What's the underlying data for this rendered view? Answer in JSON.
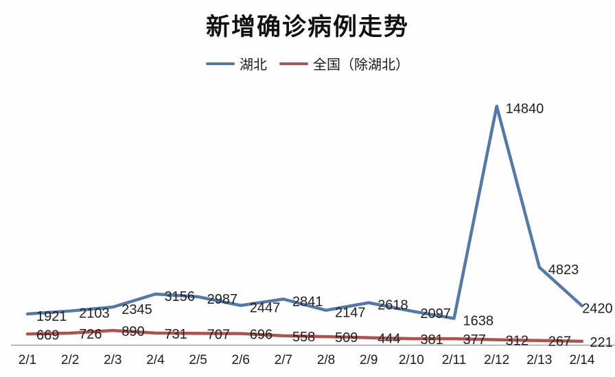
{
  "chart_data": {
    "type": "line",
    "title": "新增确诊病例走势",
    "categories": [
      "2/1",
      "2/2",
      "2/3",
      "2/4",
      "2/5",
      "2/6",
      "2/7",
      "2/8",
      "2/9",
      "2/10",
      "2/11",
      "2/12",
      "2/13",
      "2/14"
    ],
    "series": [
      {
        "name": "湖北",
        "color": "#5379A8",
        "values": [
          1921,
          2103,
          2345,
          3156,
          2987,
          2447,
          2841,
          2147,
          2618,
          2097,
          1638,
          14840,
          4823,
          2420
        ]
      },
      {
        "name": "全国（除湖北）",
        "color": "#AF524C",
        "values": [
          669,
          726,
          890,
          731,
          707,
          696,
          558,
          509,
          444,
          381,
          377,
          312,
          267,
          221
        ]
      }
    ],
    "xlabel": "",
    "ylabel": "",
    "ylim": [
      0,
      16000
    ],
    "grid": false,
    "y_axis_visible": false,
    "x_axis_line_visible": true,
    "legend_position": "top-center",
    "data_labels": true,
    "axis_line_color": "#808080",
    "data_label_color": "#1f1f1f"
  }
}
